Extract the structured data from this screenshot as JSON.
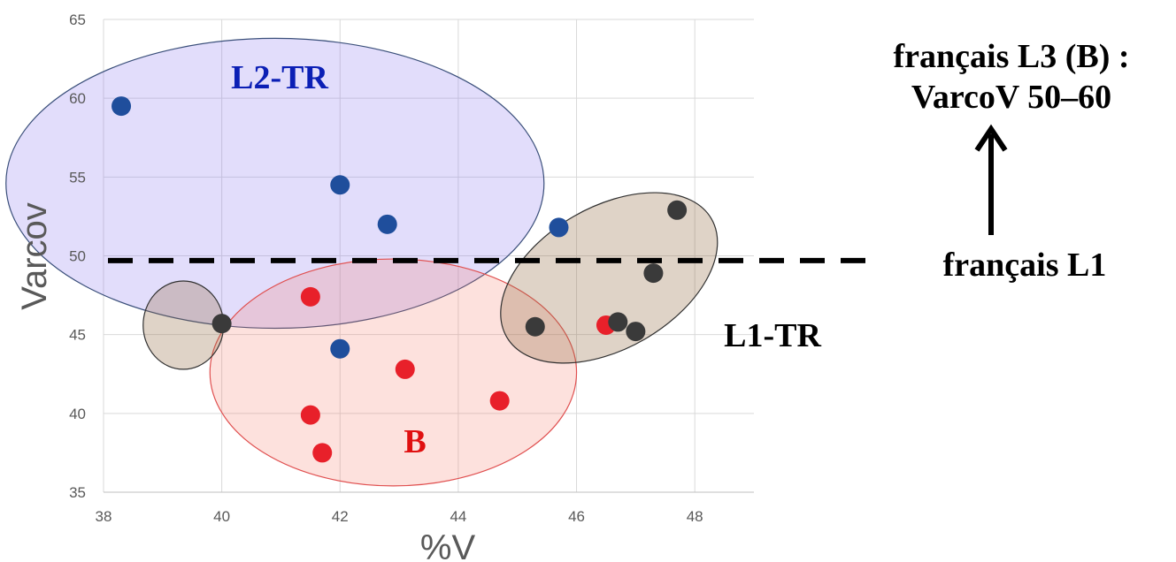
{
  "chart_data": {
    "type": "scatter",
    "title": "",
    "xlabel": "%V",
    "ylabel": "Varcov",
    "xlim": [
      38,
      49
    ],
    "ylim": [
      35,
      65
    ],
    "xticks": [
      "38",
      "40",
      "42",
      "44",
      "46",
      "48"
    ],
    "yticks": [
      "35",
      "40",
      "45",
      "50",
      "55",
      "60",
      "65"
    ],
    "grid": true,
    "series": [
      {
        "name": "L2-TR",
        "color": "#1f4e9c",
        "points": [
          {
            "x": 38.3,
            "y": 59.5
          },
          {
            "x": 42.0,
            "y": 54.5
          },
          {
            "x": 42.8,
            "y": 52.0
          },
          {
            "x": 45.7,
            "y": 51.8
          },
          {
            "x": 42.0,
            "y": 44.1
          }
        ]
      },
      {
        "name": "B",
        "color": "#e8202a",
        "points": [
          {
            "x": 41.5,
            "y": 47.4
          },
          {
            "x": 43.1,
            "y": 42.8
          },
          {
            "x": 41.5,
            "y": 39.9
          },
          {
            "x": 44.7,
            "y": 40.8
          },
          {
            "x": 41.7,
            "y": 37.5
          },
          {
            "x": 46.5,
            "y": 45.6
          }
        ]
      },
      {
        "name": "L1-TR",
        "color": "#3a3a3a",
        "points": [
          {
            "x": 40.0,
            "y": 45.7
          },
          {
            "x": 45.3,
            "y": 45.5
          },
          {
            "x": 46.7,
            "y": 45.8
          },
          {
            "x": 47.0,
            "y": 45.2
          },
          {
            "x": 47.3,
            "y": 48.9
          },
          {
            "x": 47.7,
            "y": 52.9
          }
        ]
      }
    ],
    "groups": [
      {
        "label": "L2-TR",
        "label_color": "#0b1fb5",
        "fill": "rgba(140,120,240,0.25)",
        "stroke": "#3a4f7a",
        "cx": 40.9,
        "cy": 54.6,
        "rx": 4.55,
        "ry": 9.2
      },
      {
        "label": "B",
        "label_color": "#e01010",
        "fill": "rgba(245,120,100,0.22)",
        "stroke": "#e05050",
        "cx": 42.9,
        "cy": 42.6,
        "rx": 3.1,
        "ry": 7.2
      },
      {
        "label": "L1-TR",
        "label_color": "#000000",
        "fill": "rgba(150,110,70,0.3)",
        "stroke": "#303030",
        "cx": 46.55,
        "cy": 48.6,
        "rx": 2.0,
        "ry": 4.5,
        "rotate": -30
      },
      {
        "label": "",
        "label_color": "#000000",
        "fill": "rgba(150,110,70,0.3)",
        "stroke": "#303030",
        "cx": 39.35,
        "cy": 45.6,
        "rx": 0.68,
        "ry": 2.8
      }
    ],
    "reference_line": {
      "y": 49.7,
      "label": "français L1",
      "style": "dashed"
    },
    "annotation": {
      "line1": "français L3 (B) :",
      "line2": "VarcoV 50–60",
      "arrow": "up"
    }
  }
}
